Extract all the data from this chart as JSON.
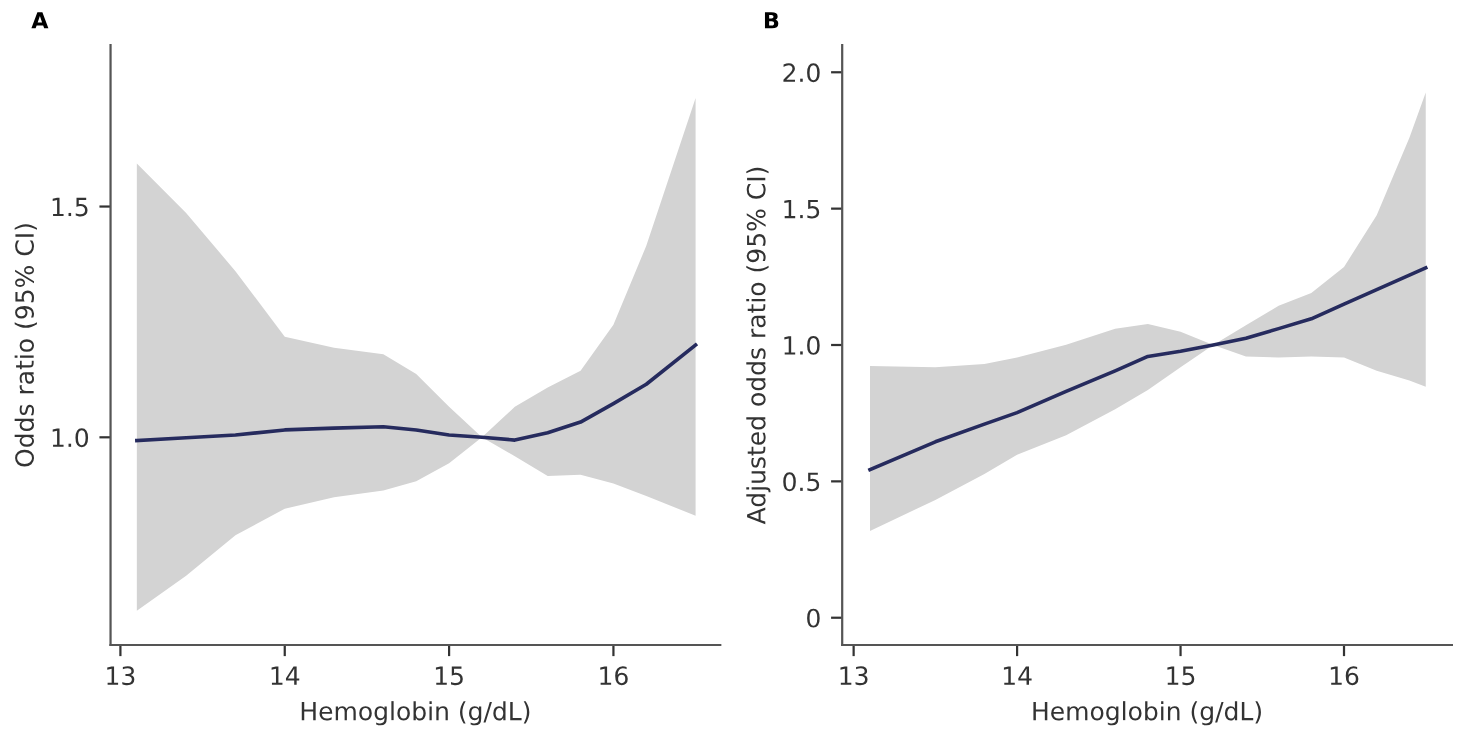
{
  "chart_data": [
    {
      "type": "line",
      "title": "A",
      "xlabel": "Hemoglobin (g/dL)",
      "ylabel": "Odds ratio (95% CI)",
      "xlim": [
        12.94,
        16.65
      ],
      "ylim": [
        0.55,
        1.85
      ],
      "xticks": [
        13,
        14,
        15,
        16
      ],
      "yticks": [
        {
          "value": 1.0,
          "label": "1.0"
        },
        {
          "value": 1.5,
          "label": "1.5"
        }
      ],
      "grid": false,
      "marker": "none",
      "line_style": "solid",
      "series": [
        {
          "color": "#262b5e",
          "x": [
            13.1,
            13.4,
            13.7,
            14.0,
            14.3,
            14.6,
            14.8,
            15.0,
            15.2,
            15.4,
            15.6,
            15.8,
            16.0,
            16.2,
            16.5
          ],
          "values": [
            0.993,
            0.999,
            1.005,
            1.016,
            1.02,
            1.023,
            1.016,
            1.005,
            1.0,
            0.994,
            1.01,
            1.033,
            1.073,
            1.115,
            1.2
          ],
          "lower": [
            0.624,
            0.7,
            0.788,
            0.845,
            0.87,
            0.885,
            0.905,
            0.944,
            1.0,
            0.959,
            0.916,
            0.919,
            0.9,
            0.873,
            0.83
          ],
          "upper": [
            1.593,
            1.486,
            1.36,
            1.218,
            1.194,
            1.18,
            1.137,
            1.066,
            1.0,
            1.066,
            1.108,
            1.144,
            1.244,
            1.415,
            1.735
          ]
        }
      ]
    },
    {
      "type": "line",
      "title": "B",
      "xlabel": "Hemoglobin (g/dL)",
      "ylabel": "Adjusted odds ratio (95% CI)",
      "xlim": [
        12.93,
        16.66
      ],
      "ylim": [
        -0.1,
        2.1
      ],
      "xticks": [
        13,
        14,
        15,
        16
      ],
      "yticks": [
        {
          "value": 0,
          "label": "0"
        },
        {
          "value": 0.5,
          "label": "0.5"
        },
        {
          "value": 1.0,
          "label": "1.0"
        },
        {
          "value": 1.5,
          "label": "1.5"
        },
        {
          "value": 2.0,
          "label": "2.0"
        }
      ],
      "grid": false,
      "marker": "none",
      "line_style": "solid",
      "series": [
        {
          "color": "#262b5e",
          "x": [
            13.1,
            13.5,
            13.8,
            14.0,
            14.3,
            14.6,
            14.8,
            15.0,
            15.2,
            15.4,
            15.6,
            15.8,
            16.0,
            16.2,
            16.4,
            16.5
          ],
          "values": [
            0.543,
            0.645,
            0.71,
            0.752,
            0.83,
            0.905,
            0.958,
            0.977,
            1.0,
            1.025,
            1.06,
            1.096,
            1.15,
            1.203,
            1.256,
            1.283
          ],
          "lower": [
            0.318,
            0.432,
            0.527,
            0.598,
            0.669,
            0.764,
            0.835,
            0.918,
            1.0,
            0.958,
            0.954,
            0.958,
            0.954,
            0.906,
            0.87,
            0.847
          ],
          "upper": [
            0.923,
            0.918,
            0.93,
            0.954,
            1.001,
            1.06,
            1.077,
            1.049,
            1.0,
            1.072,
            1.144,
            1.191,
            1.286,
            1.476,
            1.76,
            1.926
          ]
        }
      ]
    }
  ]
}
